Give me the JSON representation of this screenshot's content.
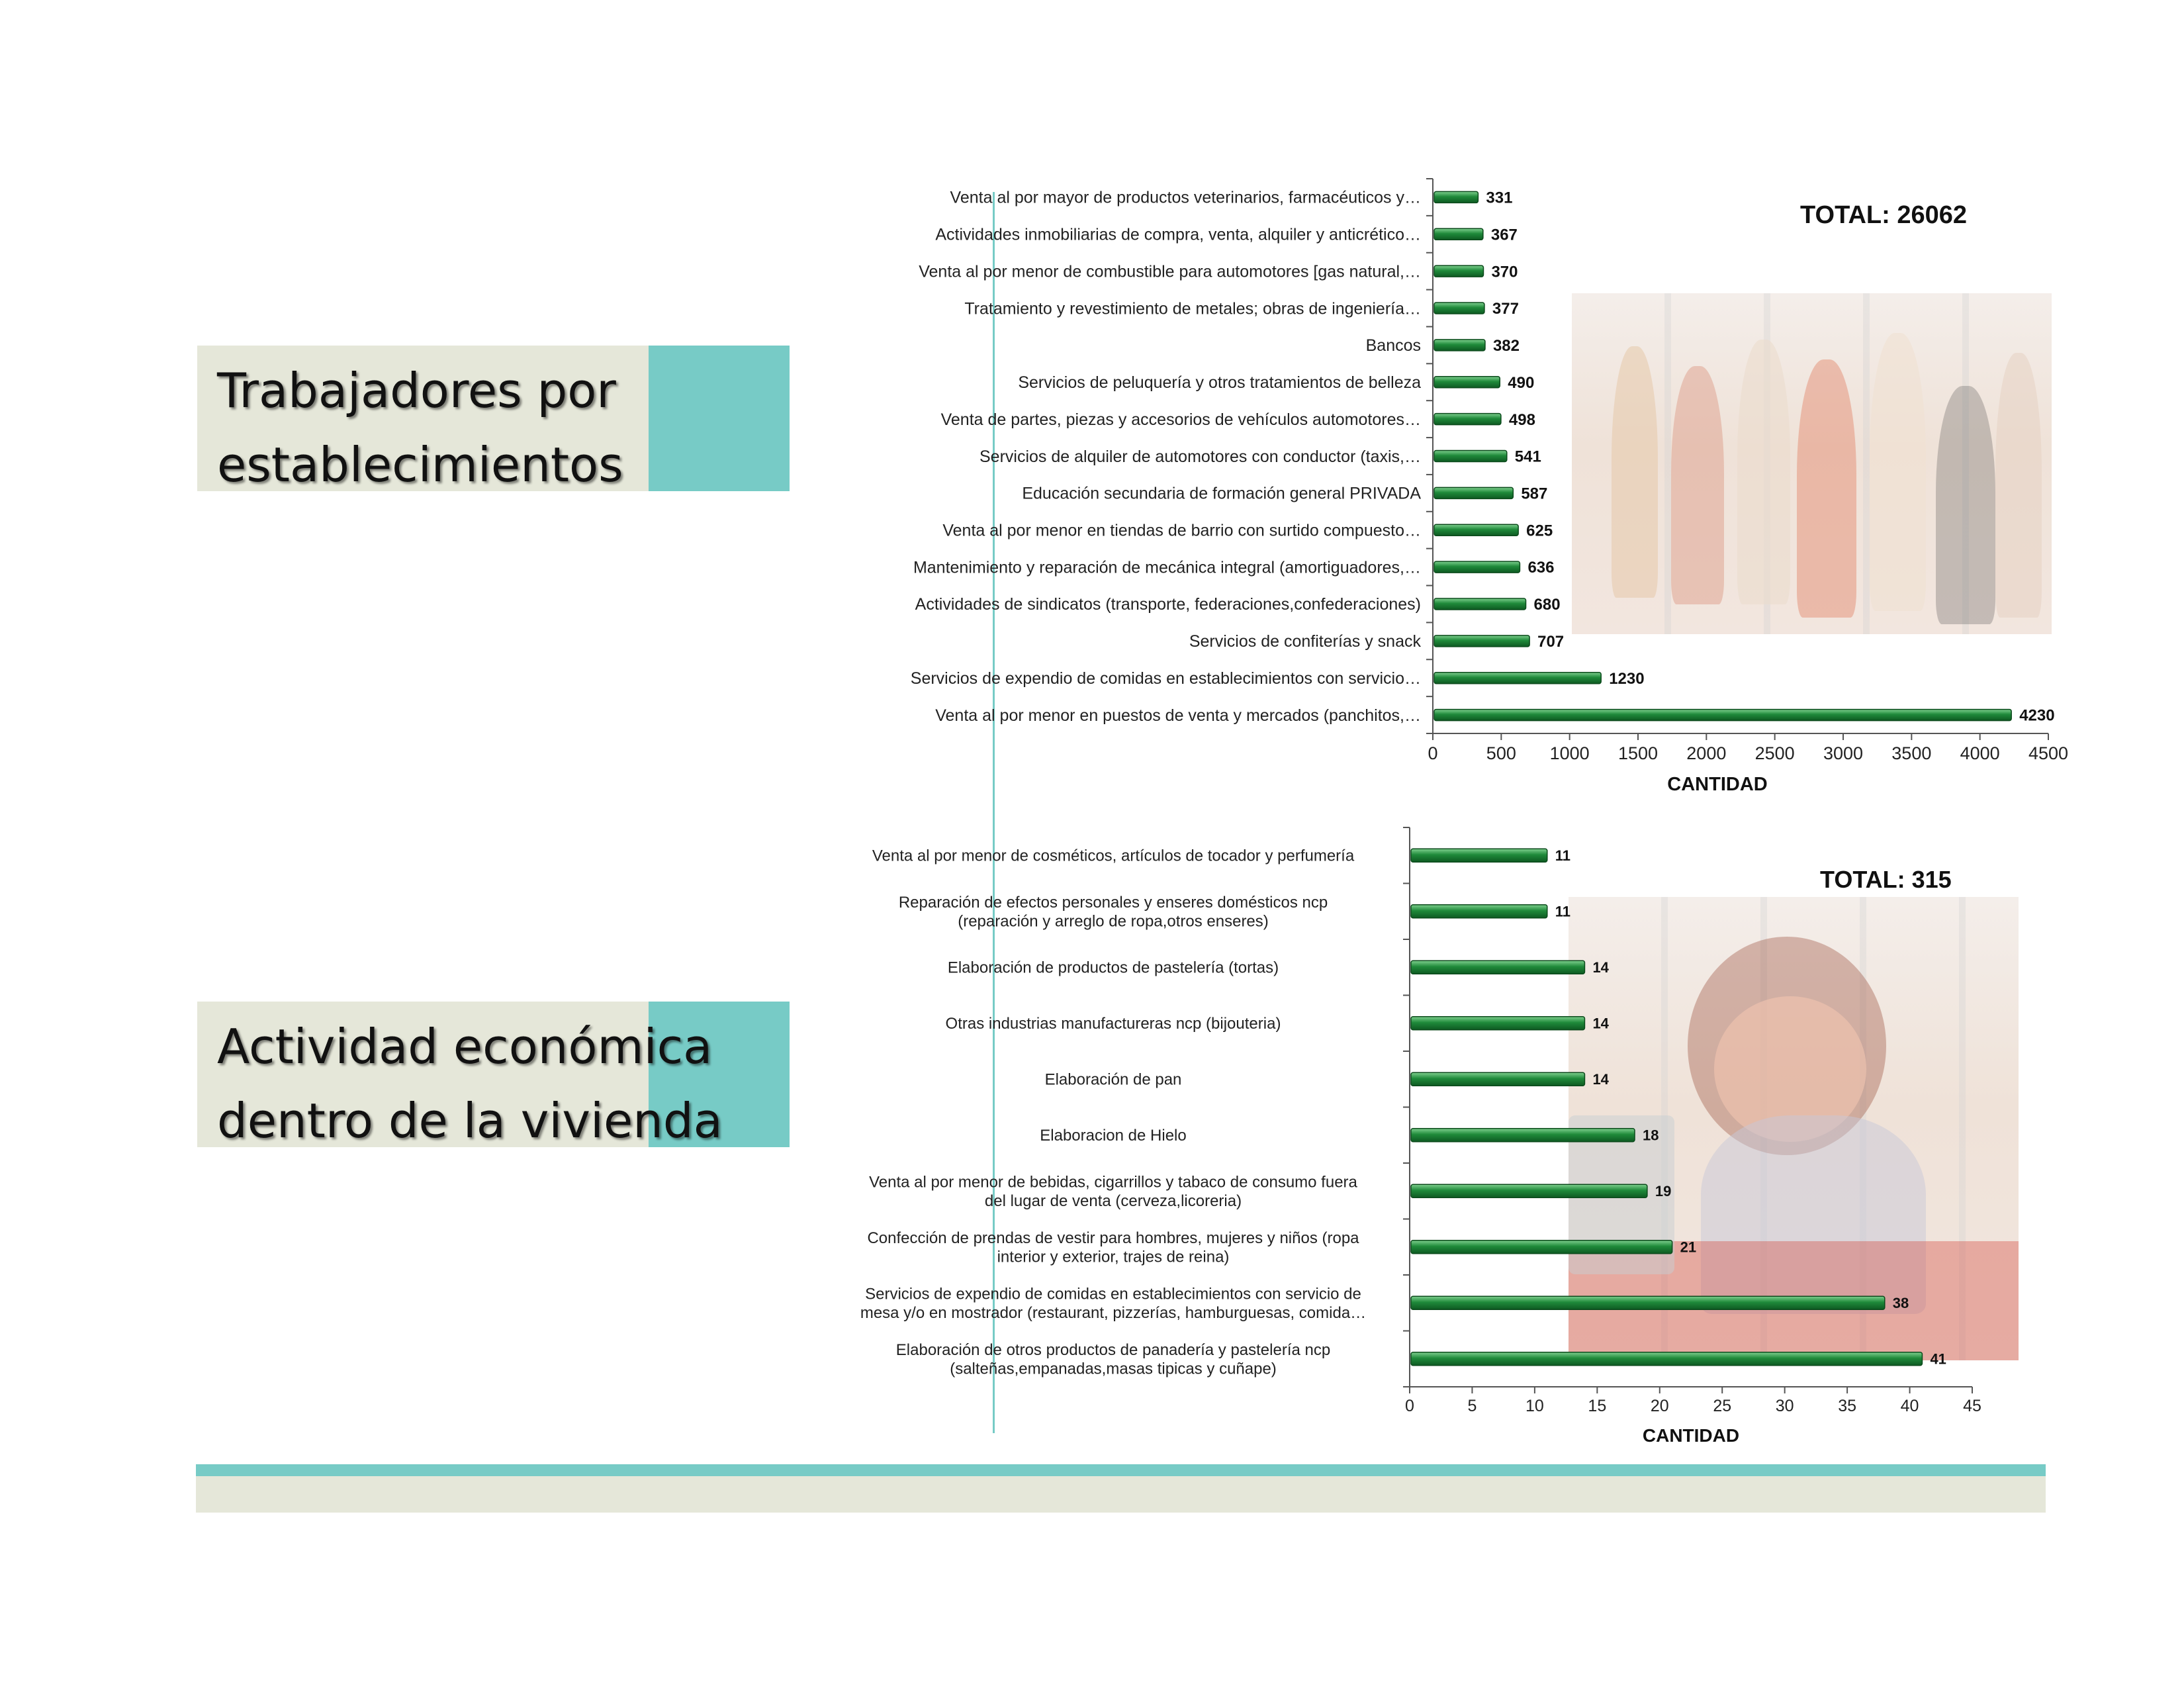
{
  "colors": {
    "accent_teal": "#77cbc6",
    "panel_beige": "#e5e7d9",
    "bar_green": "#1f8a3a",
    "bar_green_dark": "#0e5a22",
    "bar_green_light": "#7fd08f"
  },
  "sections": [
    {
      "title_line1": "Trabajadores por",
      "title_line2": "establecimientos"
    },
    {
      "title_line1": "Actividad económica",
      "title_line2": "dentro de la vivienda"
    }
  ],
  "chart_data": [
    {
      "type": "bar",
      "orientation": "horizontal",
      "total_label": "TOTAL: 26062",
      "xlabel": "CANTIDAD",
      "xlim": [
        0,
        4500
      ],
      "xticks": [
        0,
        500,
        1000,
        1500,
        2000,
        2500,
        3000,
        3500,
        4000,
        4500
      ],
      "grid": false,
      "categories": [
        [
          "Venta al por mayor de productos veterinarios, farmacéuticos y…"
        ],
        [
          "Actividades inmobiliarias de compra, venta, alquiler y anticrético…"
        ],
        [
          "Venta al por menor de combustible para automotores [gas natural,…"
        ],
        [
          "Tratamiento y revestimiento de metales; obras de ingeniería…"
        ],
        [
          "Bancos"
        ],
        [
          "Servicios de peluquería y otros tratamientos de belleza"
        ],
        [
          "Venta de partes, piezas y accesorios de vehículos automotores…"
        ],
        [
          "Servicios de alquiler de automotores con conductor (taxis,…"
        ],
        [
          "Educación secundaria de formación general PRIVADA"
        ],
        [
          "Venta al por menor en tiendas de barrio con surtido compuesto…"
        ],
        [
          "Mantenimiento y reparación de mecánica integral (amortiguadores,…"
        ],
        [
          "Actividades de sindicatos (transporte, federaciones,confederaciones)"
        ],
        [
          "Servicios de confiterías y snack"
        ],
        [
          "Servicios de expendio de comidas en establecimientos con servicio…"
        ],
        [
          "Venta al por menor en puestos de venta y mercados (panchitos,…"
        ]
      ],
      "values": [
        331,
        367,
        370,
        377,
        382,
        490,
        498,
        541,
        587,
        625,
        636,
        680,
        707,
        1230,
        4230
      ]
    },
    {
      "type": "bar",
      "orientation": "horizontal",
      "total_label": "TOTAL: 315",
      "xlabel": "CANTIDAD",
      "xlim": [
        0,
        45
      ],
      "xticks": [
        0,
        5,
        10,
        15,
        20,
        25,
        30,
        35,
        40,
        45
      ],
      "grid": false,
      "categories": [
        [
          "Venta al por menor de cosméticos, artículos de tocador y perfumería"
        ],
        [
          "Reparación de efectos personales y enseres domésticos ncp",
          "(reparación y arreglo de ropa,otros enseres)"
        ],
        [
          "Elaboración de productos de pastelería (tortas)"
        ],
        [
          "Otras industrias manufactureras ncp (bijouteria)"
        ],
        [
          "Elaboración de pan"
        ],
        [
          "Elaboracion de Hielo"
        ],
        [
          "Venta al por menor de bebidas, cigarrillos y tabaco de consumo fuera",
          "del lugar de venta (cerveza,licoreria)"
        ],
        [
          "Confección de prendas de vestir para hombres, mujeres y niños (ropa",
          "interior y exterior, trajes de reina)"
        ],
        [
          "Servicios de expendio de comidas en establecimientos con servicio de",
          "mesa y/o en mostrador (restaurant, pizzerías, hamburguesas, comida…"
        ],
        [
          "Elaboración de otros productos de panadería y pastelería ncp",
          "(salteñas,empanadas,masas tipicas y cuñape)"
        ]
      ],
      "values": [
        11,
        11,
        14,
        14,
        14,
        18,
        19,
        21,
        38,
        41
      ]
    }
  ]
}
